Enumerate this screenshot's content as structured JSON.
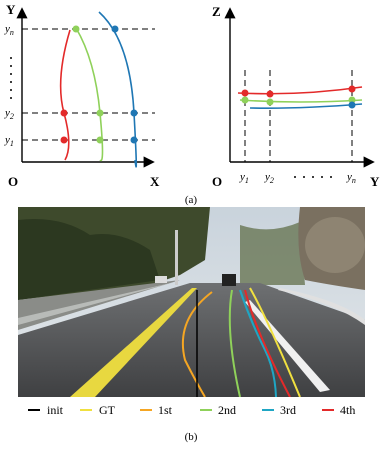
{
  "panel_a": {
    "left": {
      "y_axis": "Y",
      "x_axis": "X",
      "origin": "O",
      "ticks": [
        {
          "base": "y",
          "sub": "n"
        },
        {
          "base": "y",
          "sub": "2"
        },
        {
          "base": "y",
          "sub": "1"
        }
      ]
    },
    "right": {
      "z_axis": "Z",
      "y_axis": "Y",
      "origin": "O",
      "ticks": [
        {
          "base": "y",
          "sub": "1"
        },
        {
          "base": "y",
          "sub": "2"
        },
        {
          "base": "y",
          "sub": "n"
        }
      ]
    },
    "caption": "(a)"
  },
  "panel_b": {
    "legend": [
      "init",
      "GT",
      "1st",
      "2nd",
      "3rd",
      "4th"
    ],
    "caption": "(b)"
  }
}
